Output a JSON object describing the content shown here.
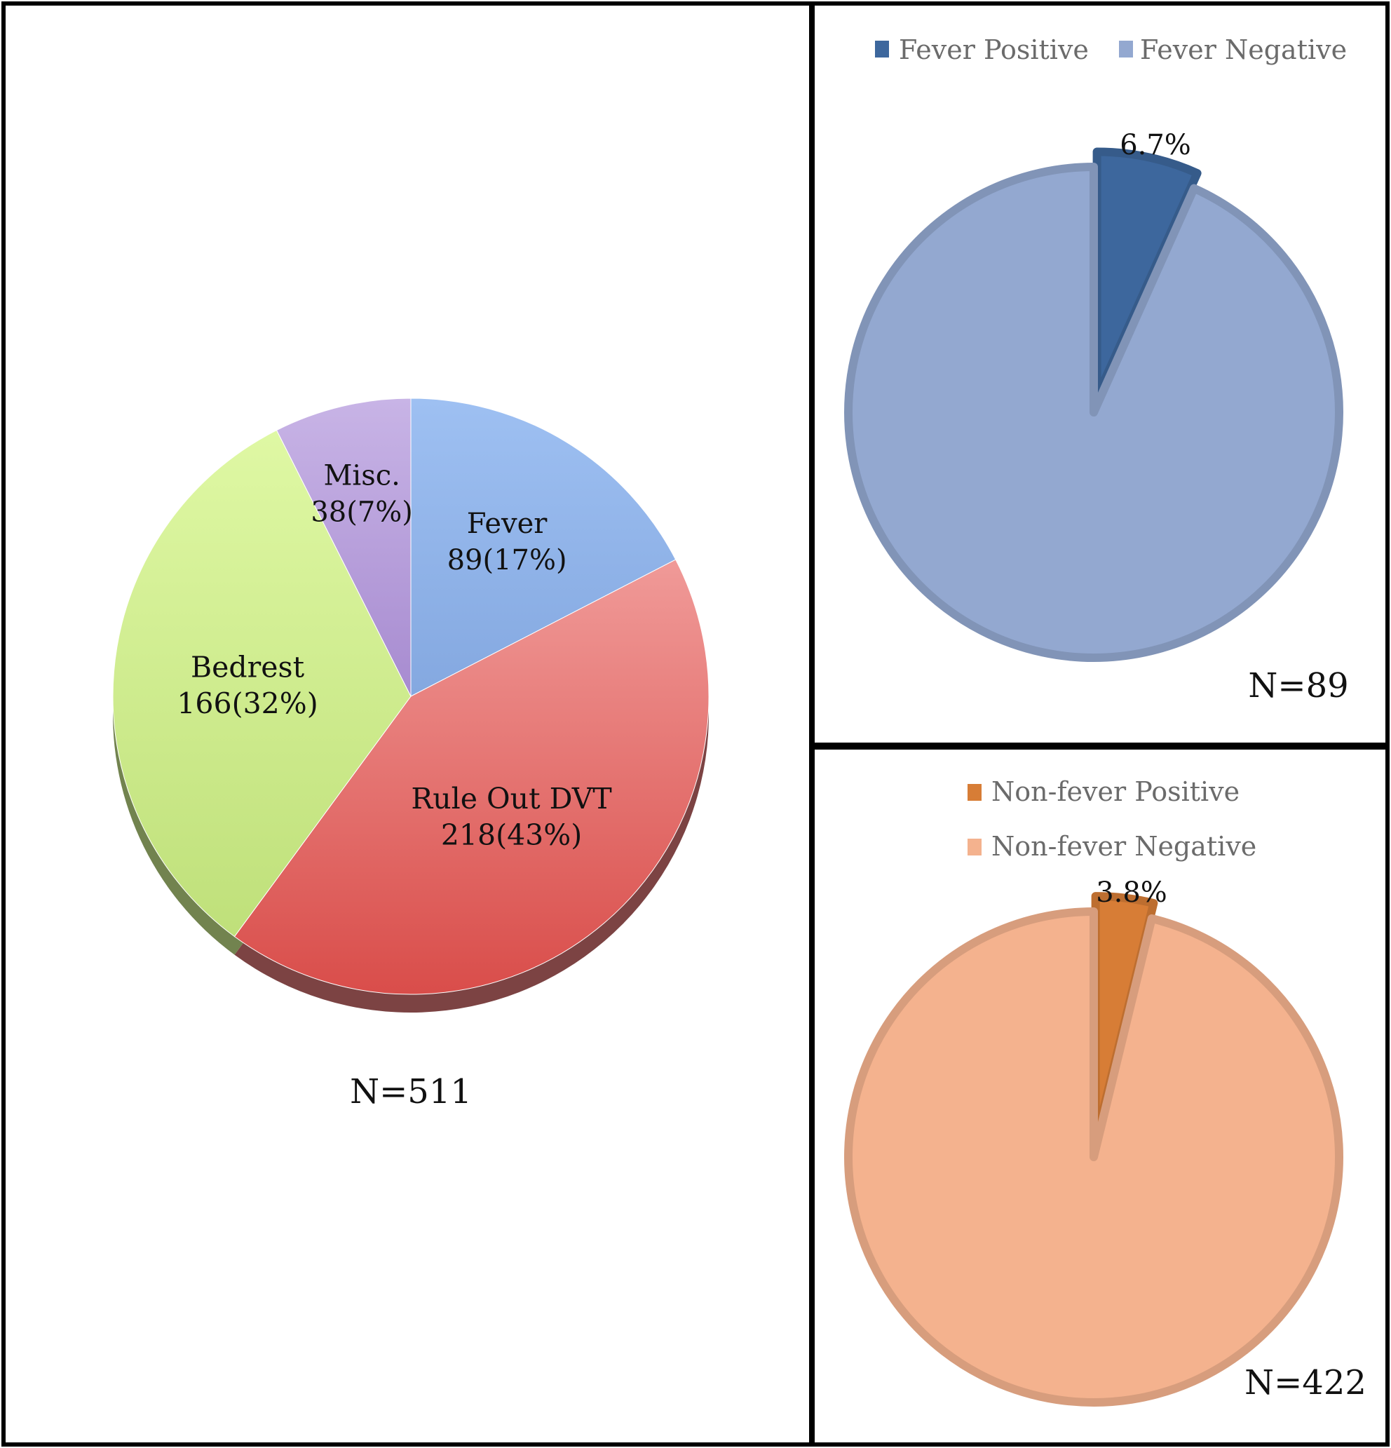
{
  "chart_data": [
    {
      "type": "pie",
      "categories": [
        "Fever",
        "Rule Out DVT",
        "Bedrest",
        "Misc."
      ],
      "values": [
        89,
        218,
        166,
        38
      ],
      "data_labels": [
        [
          "Fever",
          "89(17%)"
        ],
        [
          "Rule Out DVT",
          "218(43%)"
        ],
        [
          "Bedrest",
          "166(32%)"
        ],
        [
          "Misc.",
          "38(7%)"
        ]
      ],
      "colors": [
        "#93b5ea",
        "#e27a7a",
        "#cfee8f",
        "#b9a1dc"
      ],
      "annotation": "N=511"
    },
    {
      "type": "pie",
      "categories": [
        "Fever Positive",
        "Fever Negative"
      ],
      "values": [
        6.7,
        93.3
      ],
      "data_labels": [
        "6.7%",
        ""
      ],
      "colors": [
        "#3d679d",
        "#93a8d0"
      ],
      "legend": "top",
      "annotation": "N=89"
    },
    {
      "type": "pie",
      "categories": [
        "Non-fever Positive",
        "Non-fever Negative"
      ],
      "values": [
        3.8,
        96.2
      ],
      "data_labels": [
        "3.8%",
        ""
      ],
      "colors": [
        "#d77d36",
        "#f4b28e"
      ],
      "legend": "top",
      "annotation": "N=422"
    }
  ]
}
